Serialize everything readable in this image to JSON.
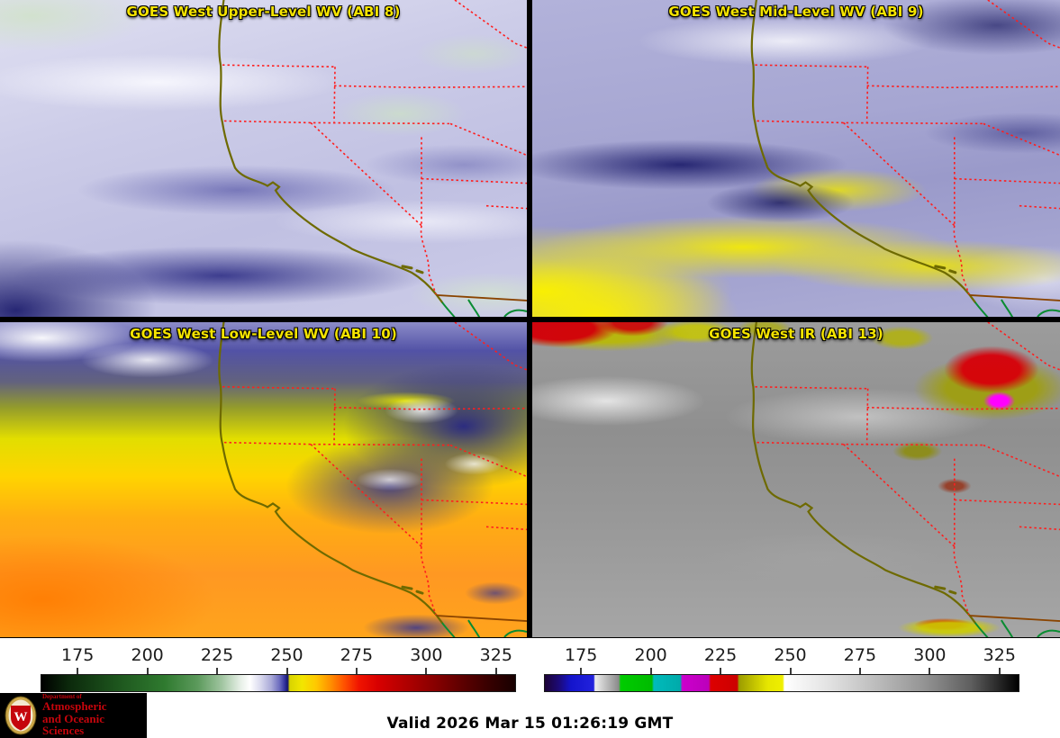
{
  "panels": [
    {
      "title": "GOES West Upper-Level WV (ABI 8)"
    },
    {
      "title": "GOES West Mid-Level WV (ABI 9)"
    },
    {
      "title": "GOES West Low-Level WV (ABI 10)"
    },
    {
      "title": "GOES West IR (ABI 13)"
    }
  ],
  "title_color": "#f5e400",
  "colorbars": [
    {
      "name": "wv-colorbar",
      "ticks": [
        "175",
        "200",
        "225",
        "250",
        "275",
        "300",
        "325"
      ],
      "stops": [
        [
          0,
          "#000000"
        ],
        [
          6,
          "#0c2a0c"
        ],
        [
          16,
          "#1d551d"
        ],
        [
          26,
          "#2f7a2f"
        ],
        [
          33,
          "#5c9a5c"
        ],
        [
          38,
          "#9fc49f"
        ],
        [
          42,
          "#e6efe6"
        ],
        [
          44,
          "#ffffff"
        ],
        [
          46,
          "#dedef0"
        ],
        [
          48.5,
          "#aaaad8"
        ],
        [
          50.3,
          "#6a6abe"
        ],
        [
          51.4,
          "#30309a"
        ],
        [
          52,
          "#14146a"
        ],
        [
          52.4,
          "#d8d400"
        ],
        [
          55,
          "#f2e600"
        ],
        [
          58,
          "#ffc800"
        ],
        [
          61,
          "#ff9000"
        ],
        [
          64,
          "#ff5000"
        ],
        [
          67,
          "#f01400"
        ],
        [
          71,
          "#d80000"
        ],
        [
          77,
          "#b00000"
        ],
        [
          83,
          "#880000"
        ],
        [
          89,
          "#5c0000"
        ],
        [
          95,
          "#340000"
        ],
        [
          100,
          "#180000"
        ]
      ]
    },
    {
      "name": "ir-colorbar",
      "ticks": [
        "175",
        "200",
        "225",
        "250",
        "275",
        "300",
        "325"
      ],
      "stops": [
        [
          0,
          "#1c0336"
        ],
        [
          3,
          "#1c0a78"
        ],
        [
          5.5,
          "#1414cc"
        ],
        [
          10.3,
          "#2222dd"
        ],
        [
          10.6,
          "#ededed"
        ],
        [
          15.6,
          "#8a8a8a"
        ],
        [
          16,
          "#00cc00"
        ],
        [
          22.6,
          "#00bb00"
        ],
        [
          23,
          "#00bbbb"
        ],
        [
          28.6,
          "#00aaaa"
        ],
        [
          29,
          "#cc00cc"
        ],
        [
          34.6,
          "#bb00bb"
        ],
        [
          35,
          "#dd0000"
        ],
        [
          40.6,
          "#cc0000"
        ],
        [
          41,
          "#9c9c00"
        ],
        [
          47,
          "#e6e600"
        ],
        [
          50.2,
          "#efef00"
        ],
        [
          50.6,
          "#ffffff"
        ],
        [
          60,
          "#e2e2e2"
        ],
        [
          70,
          "#bcbcbc"
        ],
        [
          80,
          "#949494"
        ],
        [
          90,
          "#5e5e5e"
        ],
        [
          100,
          "#000000"
        ]
      ]
    }
  ],
  "footer": {
    "valid_label": "Valid 2026 Mar 15 01:26:19 GMT"
  },
  "logo": {
    "dept_line": "Department of",
    "name_line1": "Atmospheric",
    "name_line2": "and Oceanic Sciences",
    "crest_letter": "W",
    "text_color": "#c5050c",
    "bg_color": "#000000"
  },
  "map_colors": {
    "state_border": "#ff1e1e",
    "coastline": "#6e6a00",
    "baja_coast": "#0a8c32",
    "mexico_border": "#8a4400"
  }
}
